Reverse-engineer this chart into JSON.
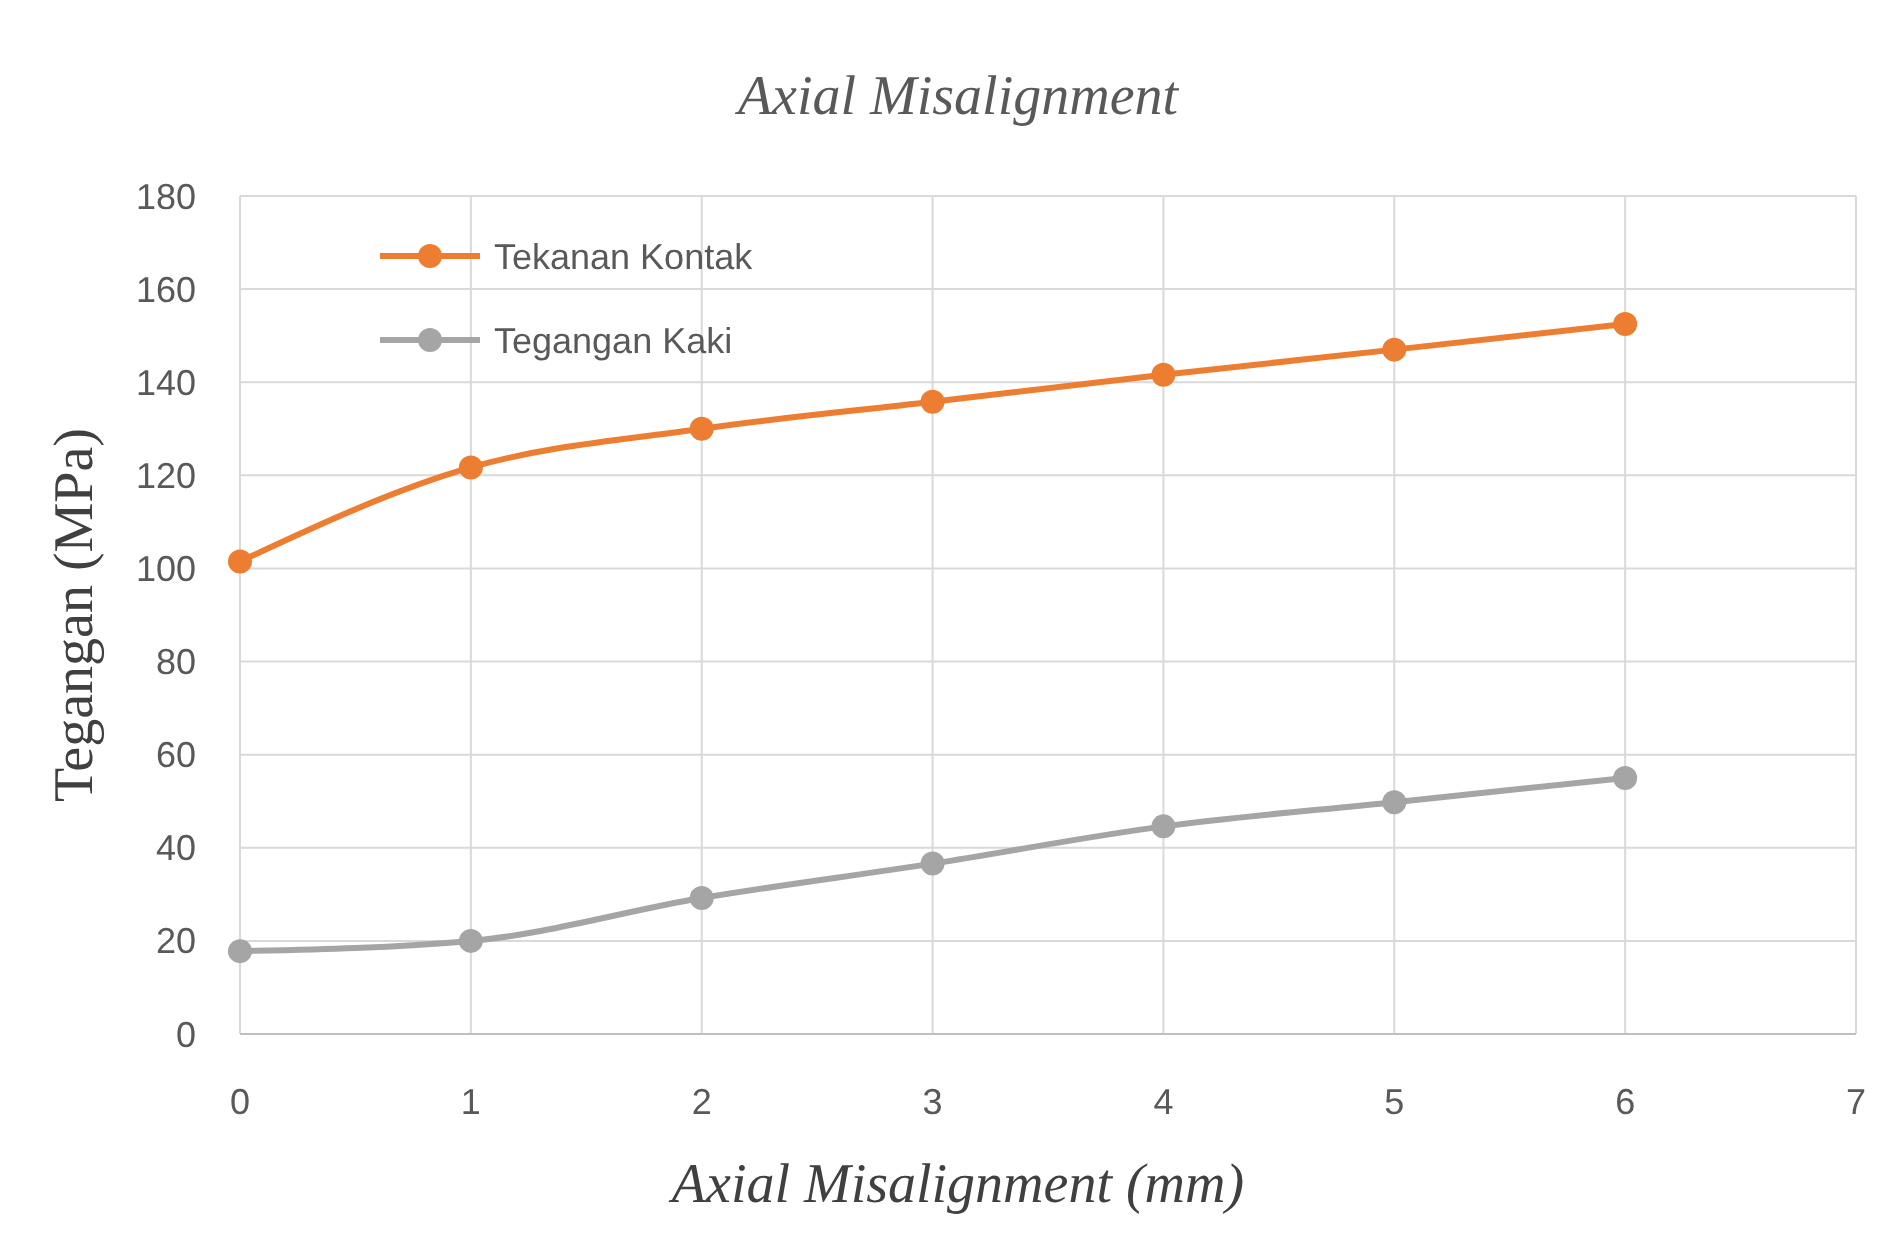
{
  "chart_data": {
    "type": "line",
    "title": "Axial Misalignment",
    "xlabel": "Axial Misalignment (mm)",
    "ylabel": "Tegangan (MPa)",
    "x": [
      0,
      1,
      2,
      3,
      4,
      5,
      6
    ],
    "series": [
      {
        "name": "Tekanan Kontak",
        "color": "#ed7d31",
        "values": [
          101.5,
          121.7,
          130,
          135.8,
          141.6,
          147,
          152.5
        ]
      },
      {
        "name": "Tegangan Kaki",
        "color": "#a5a5a5",
        "values": [
          17.8,
          20,
          29.2,
          36.6,
          44.6,
          49.8,
          55
        ]
      }
    ],
    "xlim": [
      0,
      7
    ],
    "xticks": [
      0,
      1,
      2,
      3,
      4,
      5,
      6,
      7
    ],
    "ylim": [
      0,
      180
    ],
    "yticks": [
      0,
      20,
      40,
      60,
      80,
      100,
      120,
      140,
      160,
      180
    ],
    "grid": true,
    "legend": "top left",
    "marker": "circle",
    "line_style": "solid"
  }
}
